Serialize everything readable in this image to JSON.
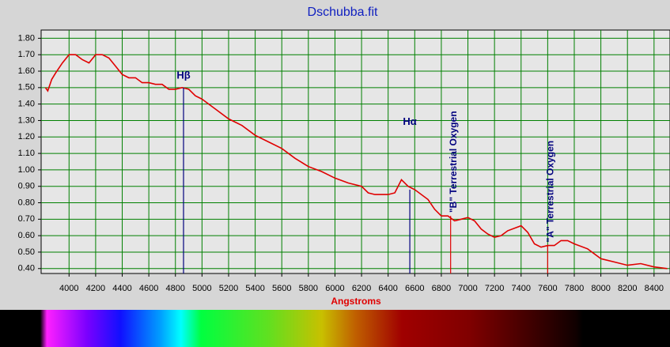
{
  "chart_data": {
    "type": "line",
    "title": "Dschubba.fit",
    "x_label": "Angstroms",
    "color": "#e00000",
    "grid": true,
    "xlim": [
      3790,
      8520
    ],
    "ylim": [
      0.37,
      1.85
    ],
    "xticks": [
      4000,
      4200,
      4400,
      4600,
      4800,
      5000,
      5200,
      5400,
      5600,
      5800,
      6000,
      6200,
      6400,
      6600,
      6800,
      7000,
      7200,
      7400,
      7600,
      7800,
      8000,
      8200,
      8400
    ],
    "yticks": [
      {
        "value": 0.4,
        "label": "0.40"
      },
      {
        "value": 0.5,
        "label": "0.50"
      },
      {
        "value": 0.6,
        "label": "0.60"
      },
      {
        "value": 0.7,
        "label": "0.70"
      },
      {
        "value": 0.8,
        "label": "0.80"
      },
      {
        "value": 0.9,
        "label": "0.90"
      },
      {
        "value": 1.0,
        "label": "1.00"
      },
      {
        "value": 1.1,
        "label": "1.10"
      },
      {
        "value": 1.2,
        "label": "1.20"
      },
      {
        "value": 1.3,
        "label": "1.30"
      },
      {
        "value": 1.4,
        "label": "1.40"
      },
      {
        "value": 1.5,
        "label": "1.50"
      },
      {
        "value": 1.6,
        "label": "1.60"
      },
      {
        "value": 1.7,
        "label": "1.70"
      },
      {
        "value": 1.8,
        "label": "1.80"
      }
    ],
    "x": [
      3822,
      3840,
      3870,
      3900,
      3950,
      4000,
      4050,
      4100,
      4150,
      4200,
      4250,
      4300,
      4350,
      4400,
      4450,
      4500,
      4550,
      4600,
      4650,
      4700,
      4750,
      4800,
      4850,
      4900,
      4950,
      5000,
      5100,
      5200,
      5300,
      5400,
      5500,
      5600,
      5700,
      5800,
      5900,
      6000,
      6100,
      6200,
      6250,
      6300,
      6400,
      6450,
      6500,
      6550,
      6600,
      6700,
      6750,
      6800,
      6850,
      6900,
      6950,
      7000,
      7050,
      7100,
      7150,
      7200,
      7250,
      7300,
      7400,
      7450,
      7500,
      7550,
      7600,
      7650,
      7700,
      7750,
      7800,
      7900,
      8000,
      8100,
      8200,
      8300,
      8400,
      8500
    ],
    "values": [
      1.5,
      1.48,
      1.55,
      1.59,
      1.65,
      1.7,
      1.7,
      1.67,
      1.65,
      1.7,
      1.7,
      1.68,
      1.63,
      1.58,
      1.56,
      1.56,
      1.53,
      1.53,
      1.52,
      1.52,
      1.49,
      1.49,
      1.5,
      1.49,
      1.45,
      1.43,
      1.37,
      1.31,
      1.27,
      1.21,
      1.17,
      1.13,
      1.07,
      1.02,
      0.99,
      0.95,
      0.92,
      0.9,
      0.86,
      0.85,
      0.85,
      0.86,
      0.94,
      0.9,
      0.88,
      0.82,
      0.76,
      0.72,
      0.72,
      0.69,
      0.7,
      0.71,
      0.69,
      0.64,
      0.61,
      0.59,
      0.6,
      0.63,
      0.66,
      0.62,
      0.55,
      0.53,
      0.54,
      0.54,
      0.57,
      0.57,
      0.55,
      0.52,
      0.46,
      0.44,
      0.42,
      0.43,
      0.41,
      0.4
    ],
    "annotations": [
      {
        "text": "Hβ",
        "x": 4861,
        "y": 1.5,
        "color": "#00007f",
        "rotated": false,
        "label_y": 1.57
      },
      {
        "text": "Hα",
        "x": 6563,
        "y": 0.88,
        "color": "#00007f",
        "rotated": false,
        "label_y": 1.29
      },
      {
        "text": "\"B\" Terrestrial Oxygen",
        "x": 6870,
        "y": 0.72,
        "color": "#e00000",
        "rotated": true,
        "label_y": 0.74
      },
      {
        "text": "\"A\" Terrestrial Oxygen",
        "x": 7600,
        "y": 0.54,
        "color": "#e00000",
        "rotated": true,
        "label_y": 0.56
      }
    ]
  }
}
